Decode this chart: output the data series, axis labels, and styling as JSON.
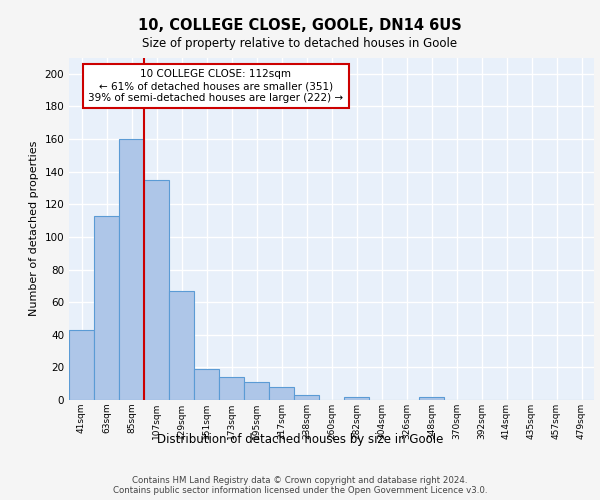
{
  "title1": "10, COLLEGE CLOSE, GOOLE, DN14 6US",
  "title2": "Size of property relative to detached houses in Goole",
  "xlabel": "Distribution of detached houses by size in Goole",
  "ylabel": "Number of detached properties",
  "categories": [
    "41sqm",
    "63sqm",
    "85sqm",
    "107sqm",
    "129sqm",
    "151sqm",
    "173sqm",
    "195sqm",
    "217sqm",
    "238sqm",
    "260sqm",
    "282sqm",
    "304sqm",
    "326sqm",
    "348sqm",
    "370sqm",
    "392sqm",
    "414sqm",
    "435sqm",
    "457sqm",
    "479sqm"
  ],
  "values": [
    43,
    113,
    160,
    135,
    67,
    19,
    14,
    11,
    8,
    3,
    0,
    2,
    0,
    0,
    2,
    0,
    0,
    0,
    0,
    0,
    0
  ],
  "bar_color": "#aec6e8",
  "bar_edge_color": "#5b9bd5",
  "red_line_x": 3,
  "annotation_text": "10 COLLEGE CLOSE: 112sqm\n← 61% of detached houses are smaller (351)\n39% of semi-detached houses are larger (222) →",
  "annotation_box_color": "#ffffff",
  "annotation_box_edge_color": "#cc0000",
  "ylim": [
    0,
    210
  ],
  "yticks": [
    0,
    20,
    40,
    60,
    80,
    100,
    120,
    140,
    160,
    180,
    200
  ],
  "footer_text": "Contains HM Land Registry data © Crown copyright and database right 2024.\nContains public sector information licensed under the Open Government Licence v3.0.",
  "plot_bg_color": "#e8f0fa",
  "grid_color": "#ffffff",
  "red_line_color": "#cc0000",
  "fig_bg_color": "#f5f5f5"
}
